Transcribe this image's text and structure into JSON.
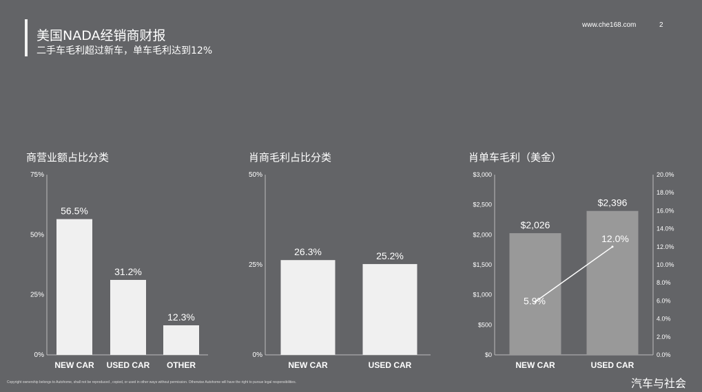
{
  "header": {
    "title": "美国NADA经销商财报",
    "subtitle": "二手车毛利超过新车，单车毛利达到12%",
    "site": "www.che168.com",
    "page_number": "2"
  },
  "footer": {
    "copyright": "Copyright ownership belongs to Autohome, shall not be reproduced , copied, or used in other ways without permission. Otherwise Autohome will have the right to pursue legal responsibilities.",
    "watermark": "汽车与社会"
  },
  "colors": {
    "background": "#636467",
    "bar_light": "#f0f0f0",
    "bar_gray": "#999999",
    "line": "#ffffff"
  },
  "chart_data": [
    {
      "type": "bar",
      "title": "商营业额占比分类",
      "categories": [
        "NEW CAR",
        "USED CAR",
        "OTHER"
      ],
      "values": [
        56.5,
        31.2,
        12.3
      ],
      "data_labels": [
        "56.5%",
        "31.2%",
        "12.3%"
      ],
      "ylim": [
        0,
        75
      ],
      "yticks": [
        "0%",
        "25%",
        "50%",
        "75%"
      ],
      "grid": false
    },
    {
      "type": "bar",
      "title": "肖商毛利占比分类",
      "categories": [
        "NEW CAR",
        "USED CAR"
      ],
      "values": [
        26.3,
        25.2
      ],
      "data_labels": [
        "26.3%",
        "25.2%"
      ],
      "ylim": [
        0,
        50
      ],
      "yticks": [
        "0%",
        "25%",
        "50%"
      ],
      "grid": false
    },
    {
      "type": "bar",
      "title": "肖单车毛利（美金）",
      "categories": [
        "NEW CAR",
        "USED CAR"
      ],
      "series": [
        {
          "type": "bar",
          "axis": "left",
          "values": [
            2026,
            2396
          ],
          "data_labels": [
            "$2,026",
            "$2,396"
          ]
        },
        {
          "type": "line",
          "axis": "right",
          "values": [
            5.9,
            12.0
          ],
          "data_labels": [
            "5.9%",
            "12.0%"
          ]
        }
      ],
      "ylim": [
        0,
        3000
      ],
      "yticks": [
        "$0",
        "$500",
        "$1,000",
        "$1,500",
        "$2,000",
        "$2,500",
        "$3,000"
      ],
      "y2lim": [
        0,
        20
      ],
      "y2ticks": [
        "0.0%",
        "2.0%",
        "4.0%",
        "6.0%",
        "8.0%",
        "10.0%",
        "12.0%",
        "14.0%",
        "16.0%",
        "18.0%",
        "20.0%"
      ],
      "grid": false
    }
  ]
}
